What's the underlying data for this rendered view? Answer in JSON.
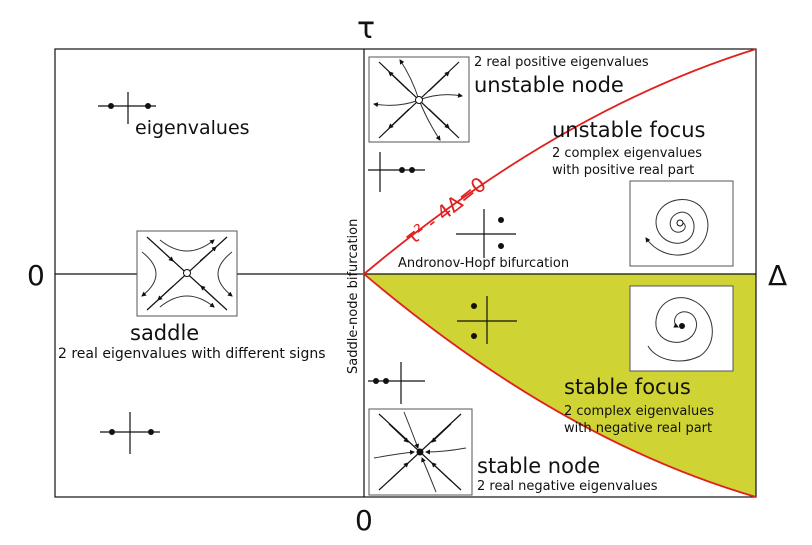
{
  "axes": {
    "tau_label": "τ",
    "delta_label": "Δ",
    "zero_left": "0",
    "zero_bottom": "0"
  },
  "regions": {
    "saddle": {
      "title": "saddle",
      "description": "2 real eigenvalues with different signs",
      "eigen_caption": "eigenvalues"
    },
    "unstable_node": {
      "title": "unstable node",
      "description": "2 real positive eigenvalues"
    },
    "unstable_focus": {
      "title": "unstable focus",
      "description_line1": "2 complex eigenvalues",
      "description_line2": "with positive real part"
    },
    "stable_focus": {
      "title": "stable focus",
      "description_line1": "2 complex eigenvalues",
      "description_line2": "with negative real part"
    },
    "stable_node": {
      "title": "stable node",
      "description": "2 real negative eigenvalues"
    }
  },
  "bifurcations": {
    "parabola_label": "τ² - 4Δ=0",
    "saddle_node": "Saddle-node bifurcation",
    "andronov_hopf": "Andronov-Hopf bifurcation"
  },
  "colors": {
    "stable_region_fill": "#cfd434",
    "parabola_stroke": "#e0201e",
    "line": "#111111"
  }
}
